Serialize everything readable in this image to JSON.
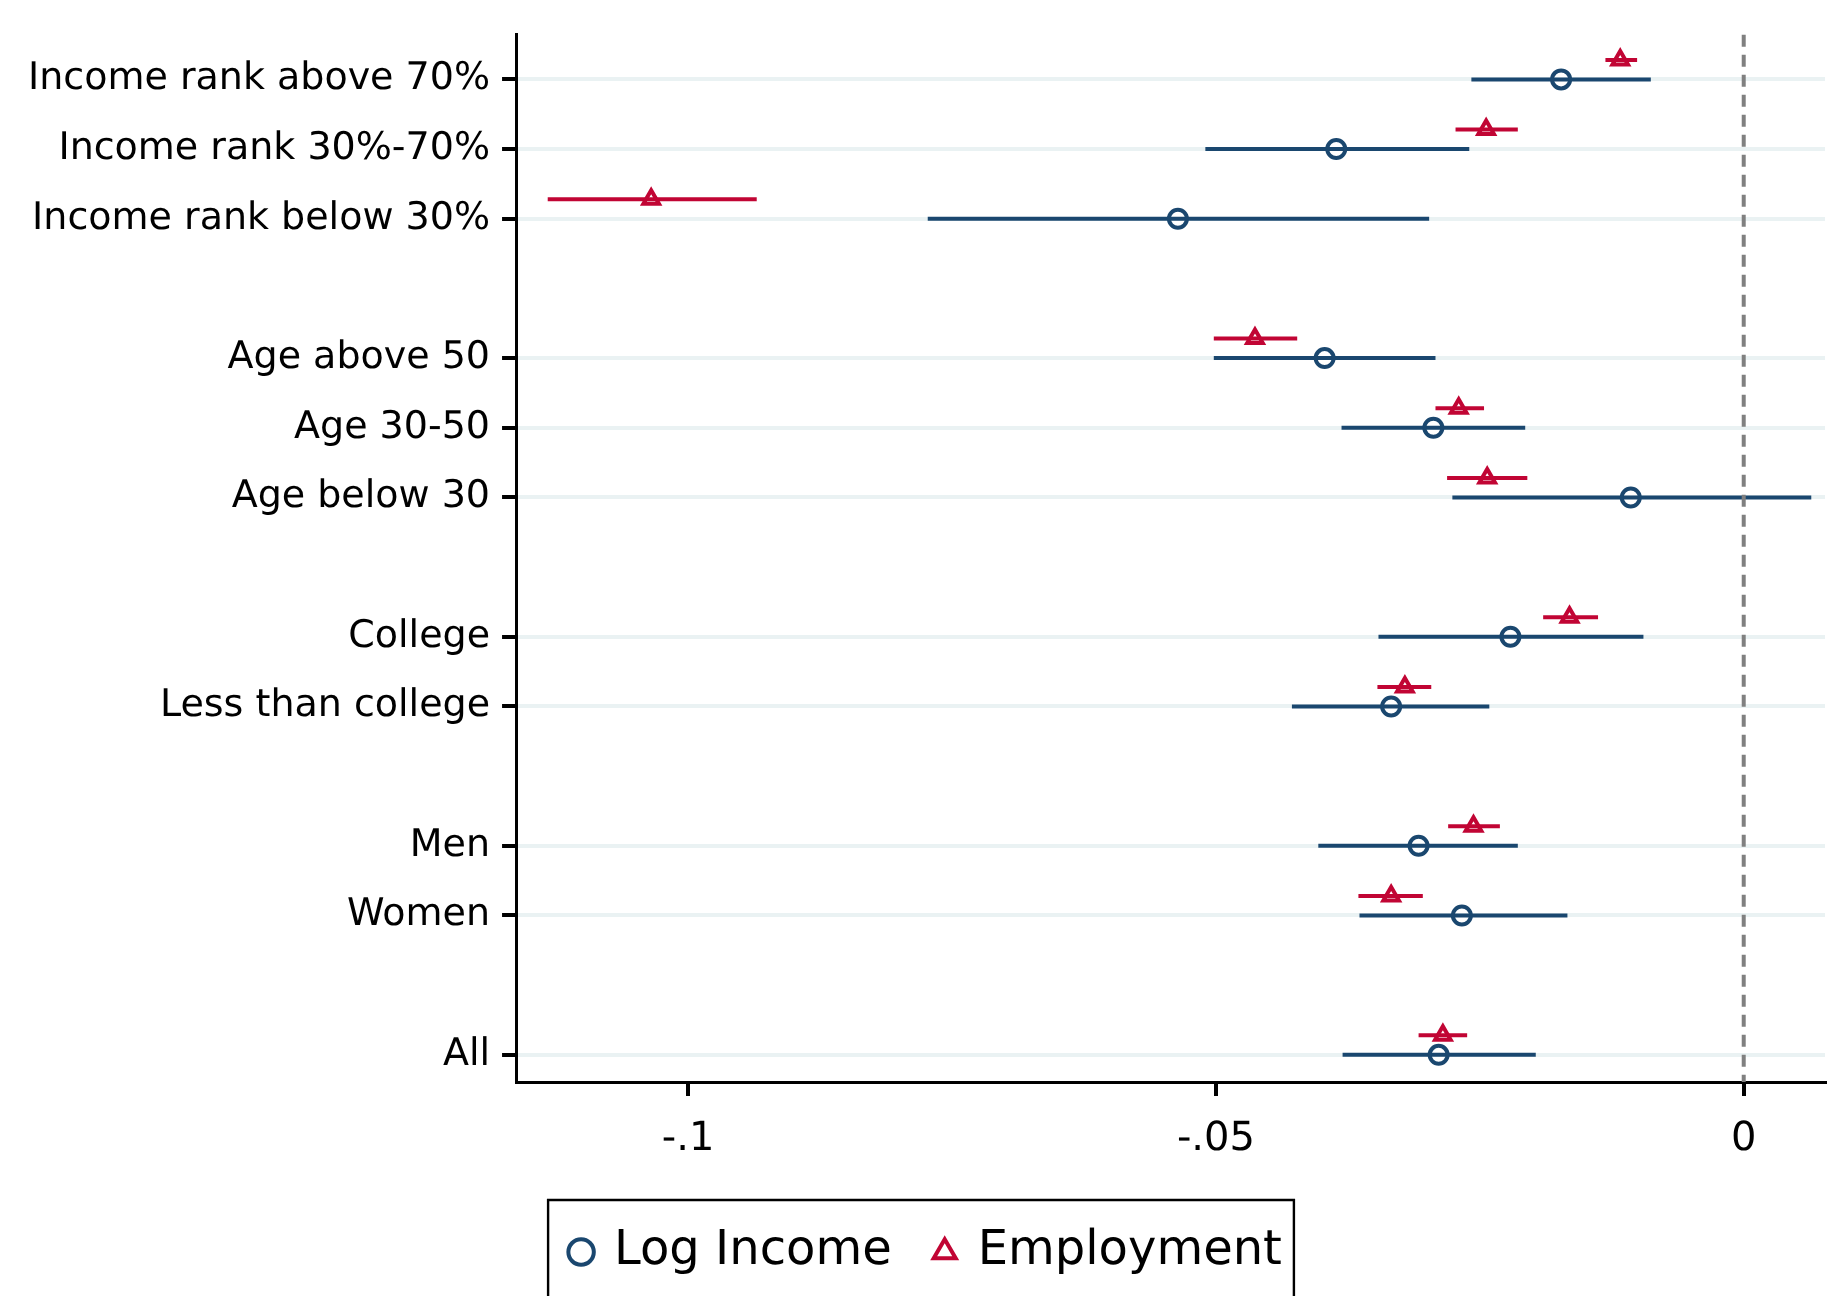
{
  "chart_data": {
    "type": "scatter",
    "orientation": "horizontal",
    "categories": [
      "Income rank above 70%",
      "Income rank 30%-70%",
      "Income rank below 30%",
      null,
      "Age above 50",
      "Age 30-50",
      "Age below 30",
      null,
      "College",
      "Less than college",
      null,
      "Men",
      "Women",
      null,
      "All"
    ],
    "series": [
      {
        "name": "Log Income",
        "color": "#1a476f",
        "marker": "circle",
        "values": [
          -0.0173,
          -0.0386,
          -0.0536,
          null,
          -0.0397,
          -0.0294,
          -0.0107,
          null,
          -0.0221,
          -0.0334,
          null,
          -0.0308,
          -0.0267,
          null,
          -0.0289
        ],
        "errors": [
          [
            -0.0258,
            -0.0088
          ],
          [
            -0.051,
            -0.026
          ],
          [
            -0.0773,
            -0.0298
          ],
          null,
          [
            -0.0502,
            -0.0292
          ],
          [
            -0.0381,
            -0.0207
          ],
          [
            -0.0276,
            0.0064
          ],
          null,
          [
            -0.0346,
            -0.0095
          ],
          [
            -0.0428,
            -0.0241
          ],
          null,
          [
            -0.0403,
            -0.0214
          ],
          [
            -0.0364,
            -0.0167
          ],
          null,
          [
            -0.038,
            -0.0197
          ]
        ]
      },
      {
        "name": "Employment",
        "color": "#c10534",
        "marker": "triangle",
        "values": [
          -0.0117,
          -0.0244,
          -0.1035,
          null,
          -0.0463,
          -0.027,
          -0.0243,
          null,
          -0.0165,
          -0.0321,
          null,
          -0.0256,
          -0.0334,
          null,
          -0.0285
        ],
        "errors": [
          [
            -0.0131,
            -0.0101
          ],
          [
            -0.0273,
            -0.0214
          ],
          [
            -0.1133,
            -0.0935
          ],
          null,
          [
            -0.0502,
            -0.0423
          ],
          [
            -0.0292,
            -0.0246
          ],
          [
            -0.0281,
            -0.0205
          ],
          null,
          [
            -0.019,
            -0.0138
          ],
          [
            -0.0347,
            -0.0296
          ],
          null,
          [
            -0.028,
            -0.0231
          ],
          [
            -0.0365,
            -0.0304
          ],
          null,
          [
            -0.0308,
            -0.0262
          ]
        ]
      }
    ],
    "xlim": [
      -0.1163,
      0.0077
    ],
    "xticks": [
      {
        "value": -0.1,
        "label": "-.1"
      },
      {
        "value": -0.05,
        "label": "-.05"
      },
      0
    ],
    "ref_lines": [
      {
        "axis": "x",
        "value": 0,
        "color": "#808080",
        "line_style": "dashed"
      }
    ],
    "grid": "y",
    "legend": "bottom"
  }
}
